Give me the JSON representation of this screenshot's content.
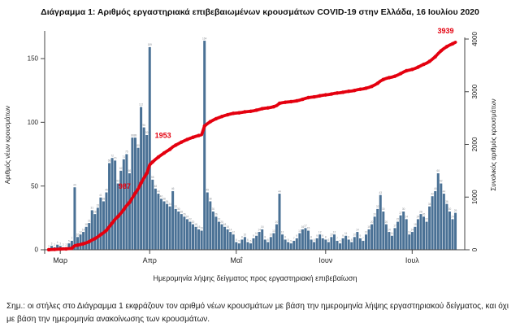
{
  "title": "Διάγραμμα 1: Αριθμός εργαστηριακά επιβεβαιωμένων κρουσμάτων COVID-19 στην Ελλάδα, 16 Ιουλίου 2020",
  "footnote": "Σημ.: οι στήλες στο Διάγραμμα 1 εκφράζουν τον αριθμό νέων κρουσμάτων με βάση την ημερομηνία λήψης εργαστηριακού δείγματος, και όχι με βάση την ημερομηνία ανακοίνωσης των κρουσμάτων.",
  "chart_data": {
    "type": "bar",
    "title": "Διάγραμμα 1: Αριθμός εργαστηριακά επιβεβαιωμένων κρουσμάτων COVID-19 στην Ελλάδα, 16 Ιουλίου 2020",
    "bar_series_name": "Αριθμός νέων κρουσμάτων",
    "overlay_line": {
      "name": "Συνολικός αριθμός κρουσμάτων",
      "derivation": "cumulative sum of daily values",
      "final_value": 3939
    },
    "start_date": "2020-02-26",
    "end_date": "2020-07-16",
    "values": [
      1,
      3,
      2,
      4,
      3,
      2,
      2,
      5,
      7,
      49,
      10,
      12,
      14,
      18,
      21,
      31,
      28,
      33,
      41,
      38,
      45,
      68,
      72,
      70,
      52,
      62,
      71,
      75,
      60,
      88,
      88,
      80,
      112,
      96,
      90,
      159,
      55,
      48,
      44,
      40,
      38,
      36,
      34,
      46,
      32,
      30,
      28,
      26,
      24,
      22,
      20,
      18,
      16,
      15,
      164,
      45,
      38,
      30,
      26,
      22,
      20,
      18,
      16,
      14,
      12,
      6,
      5,
      8,
      10,
      6,
      5,
      9,
      11,
      14,
      16,
      8,
      6,
      10,
      13,
      20,
      44,
      12,
      8,
      6,
      5,
      7,
      9,
      13,
      16,
      17,
      15,
      8,
      6,
      9,
      12,
      9,
      8,
      6,
      10,
      12,
      7,
      5,
      9,
      11,
      8,
      6,
      10,
      14,
      9,
      7,
      12,
      16,
      20,
      26,
      32,
      43,
      30,
      20,
      14,
      11,
      17,
      22,
      27,
      30,
      24,
      12,
      14,
      18,
      24,
      28,
      26,
      22,
      34,
      42,
      46,
      60,
      52,
      44,
      36,
      30,
      24,
      29
    ],
    "left_axis": {
      "label": "Αριθμός νέων κρουσμάτων",
      "ticks": [
        0,
        50,
        100,
        150
      ],
      "ylim": [
        0,
        165
      ]
    },
    "right_axis": {
      "label": "Συνολικός αριθμός κρουσμάτων",
      "ticks": [
        0,
        1000,
        2000,
        3000,
        4000
      ],
      "ylim": [
        0,
        4000
      ]
    },
    "x_axis": {
      "label": "Ημερομηνία λήψης δείγματος προς εργαστηριακή επιβεβαίωση",
      "month_labels": [
        "Μαρ",
        "Απρ",
        "Μαΐ",
        "Ιουν",
        "Ιουλ"
      ],
      "month_day_index": [
        4,
        35,
        65,
        96,
        126
      ]
    },
    "annotations": [
      {
        "label": "987",
        "day": 29
      },
      {
        "label": "1953",
        "day": 43
      },
      {
        "label": "3939",
        "day": 141
      }
    ],
    "grid": false,
    "legend": "none",
    "colors": {
      "bar": "#4a7195",
      "bar_value_label": "#8b9096",
      "line": "#e4000f",
      "annotation": "#e4000f",
      "axis": "#444444",
      "tick_text": "#222222"
    }
  }
}
